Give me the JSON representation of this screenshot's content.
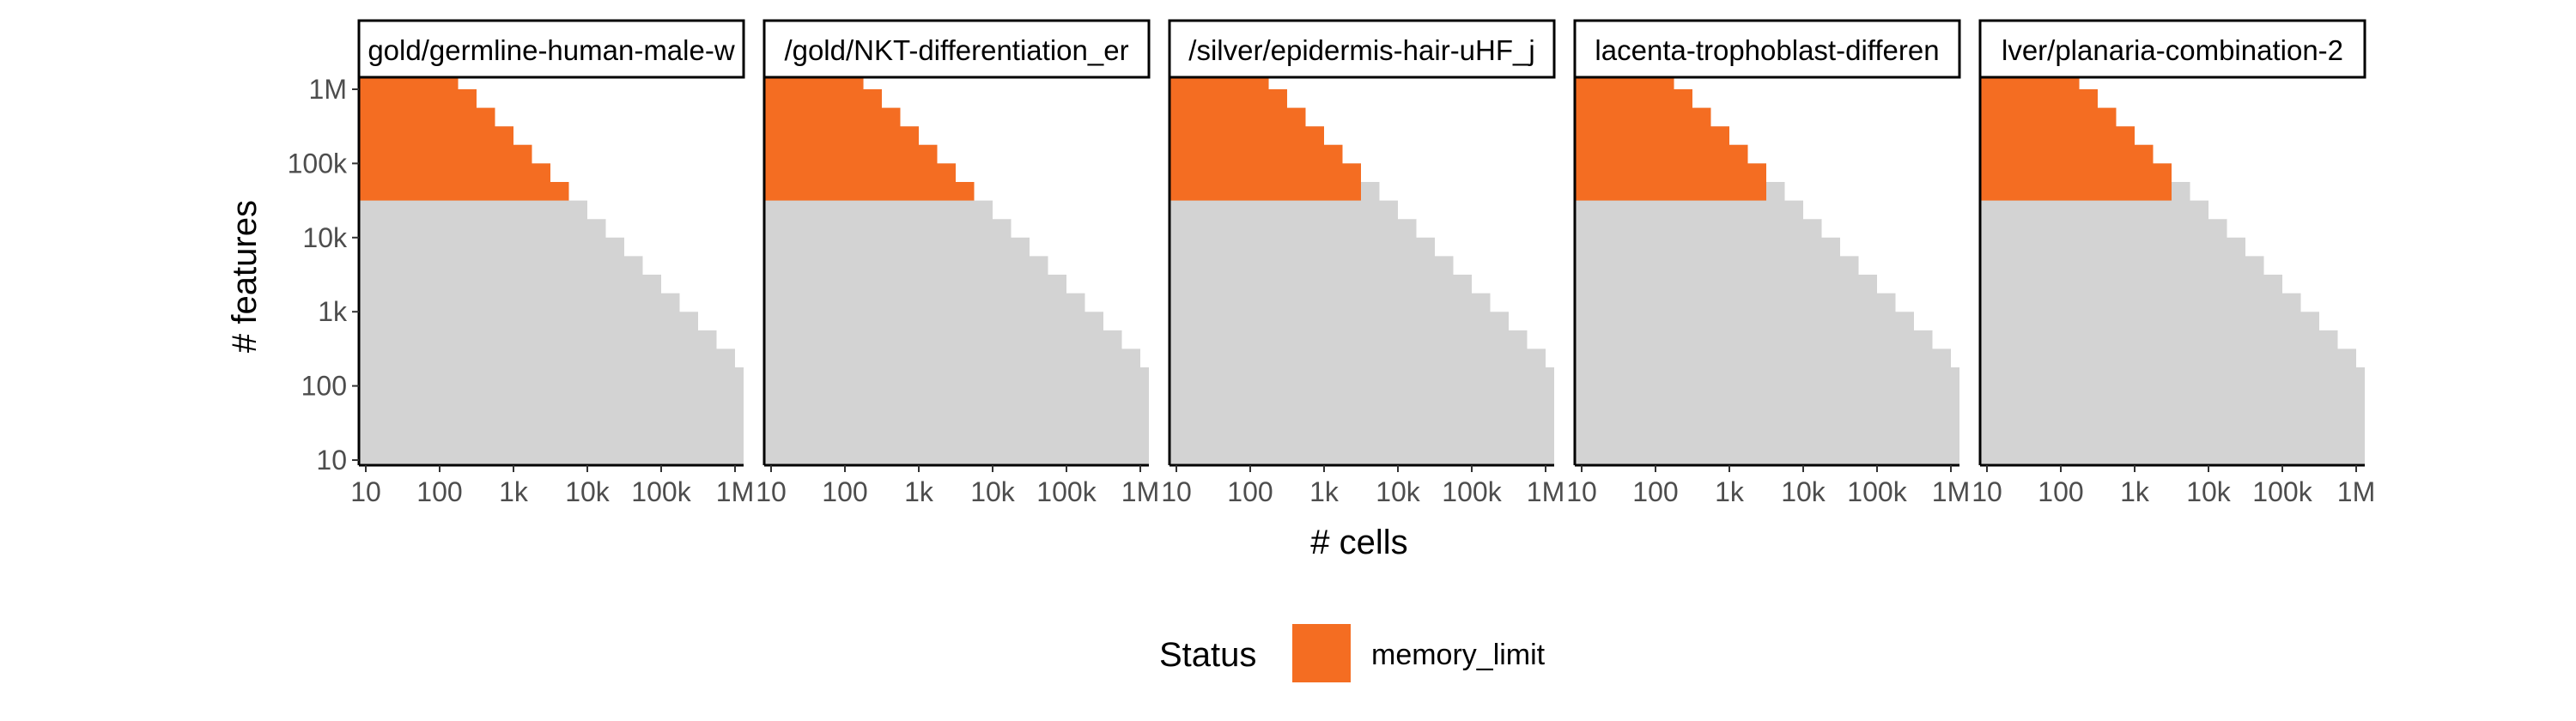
{
  "chart_data": {
    "type": "heatmap",
    "xlabel": "# cells",
    "ylabel": "# features",
    "x_scale": "log10",
    "y_scale": "log10",
    "xlim": [
      10,
      1000000
    ],
    "ylim": [
      10,
      1000000
    ],
    "x_ticks": [
      {
        "value": 10,
        "label": "10"
      },
      {
        "value": 100,
        "label": "100"
      },
      {
        "value": 1000,
        "label": "1k"
      },
      {
        "value": 10000,
        "label": "10k"
      },
      {
        "value": 100000,
        "label": "100k"
      },
      {
        "value": 1000000,
        "label": "1M"
      }
    ],
    "y_ticks": [
      {
        "value": 10,
        "label": "10"
      },
      {
        "value": 100,
        "label": "100"
      },
      {
        "value": 1000,
        "label": "1k"
      },
      {
        "value": 10000,
        "label": "10k"
      },
      {
        "value": 100000,
        "label": "100k"
      },
      {
        "value": 1000000,
        "label": "1M"
      }
    ],
    "fill_colors": {
      "memory_limit": "#f46d22",
      "other": "#d3d3d3"
    },
    "grid": false,
    "legend": {
      "title": "Status",
      "position": "bottom",
      "entries": [
        {
          "label": "memory_limit",
          "color": "#f46d22"
        }
      ]
    },
    "facets": [
      {
        "label": "gold/germline-human-male-w",
        "coverage_upper_edge": [
          [
            10,
            1778279
          ],
          [
            100,
            1778279
          ],
          [
            178,
            1000000
          ],
          [
            316,
            562341
          ],
          [
            562,
            316228
          ],
          [
            1000,
            177828
          ],
          [
            1778,
            100000
          ],
          [
            3162,
            56234
          ],
          [
            5623,
            31623
          ],
          [
            10000,
            17783
          ],
          [
            17783,
            10000
          ],
          [
            31623,
            5623
          ],
          [
            56234,
            3162
          ],
          [
            100000,
            1778
          ],
          [
            177828,
            1000
          ],
          [
            316228,
            562
          ],
          [
            562341,
            316
          ],
          [
            1000000,
            178
          ],
          [
            1778279,
            178
          ]
        ],
        "memory_limit_upper_edge": [
          [
            10,
            1778279
          ],
          [
            100,
            1778279
          ],
          [
            178,
            1000000
          ],
          [
            316,
            562341
          ],
          [
            562,
            316228
          ],
          [
            1000,
            177828
          ],
          [
            1778,
            100000
          ],
          [
            3162,
            56234
          ],
          [
            5623,
            31623
          ]
        ],
        "memory_limit_feature_min": 31623
      },
      {
        "label": "/gold/NKT-differentiation_er",
        "coverage_upper_edge": [
          [
            10,
            1778279
          ],
          [
            100,
            1778279
          ],
          [
            178,
            1000000
          ],
          [
            316,
            562341
          ],
          [
            562,
            316228
          ],
          [
            1000,
            177828
          ],
          [
            1778,
            100000
          ],
          [
            3162,
            56234
          ],
          [
            5623,
            31623
          ],
          [
            10000,
            17783
          ],
          [
            17783,
            10000
          ],
          [
            31623,
            5623
          ],
          [
            56234,
            3162
          ],
          [
            100000,
            1778
          ],
          [
            177828,
            1000
          ],
          [
            316228,
            562
          ],
          [
            562341,
            316
          ],
          [
            1000000,
            178
          ],
          [
            1778279,
            178
          ]
        ],
        "memory_limit_upper_edge": [
          [
            10,
            1778279
          ],
          [
            100,
            1778279
          ],
          [
            178,
            1000000
          ],
          [
            316,
            562341
          ],
          [
            562,
            316228
          ],
          [
            1000,
            177828
          ],
          [
            1778,
            100000
          ],
          [
            3162,
            56234
          ],
          [
            5623,
            31623
          ]
        ],
        "memory_limit_feature_min": 31623
      },
      {
        "label": "/silver/epidermis-hair-uHF_j",
        "coverage_upper_edge": [
          [
            10,
            1778279
          ],
          [
            100,
            1778279
          ],
          [
            178,
            1000000
          ],
          [
            316,
            562341
          ],
          [
            562,
            316228
          ],
          [
            1000,
            177828
          ],
          [
            1778,
            100000
          ],
          [
            3162,
            56234
          ],
          [
            5623,
            31623
          ],
          [
            10000,
            17783
          ],
          [
            17783,
            10000
          ],
          [
            31623,
            5623
          ],
          [
            56234,
            3162
          ],
          [
            100000,
            1778
          ],
          [
            177828,
            1000
          ],
          [
            316228,
            562
          ],
          [
            562341,
            316
          ],
          [
            1000000,
            178
          ],
          [
            1778279,
            178
          ]
        ],
        "memory_limit_upper_edge": [
          [
            10,
            1778279
          ],
          [
            100,
            1778279
          ],
          [
            178,
            1000000
          ],
          [
            316,
            562341
          ],
          [
            562,
            316228
          ],
          [
            1000,
            177828
          ],
          [
            1778,
            100000
          ],
          [
            3162,
            31623
          ]
        ],
        "memory_limit_feature_min": 31623
      },
      {
        "label": "lacenta-trophoblast-differen",
        "coverage_upper_edge": [
          [
            10,
            1778279
          ],
          [
            100,
            1778279
          ],
          [
            178,
            1000000
          ],
          [
            316,
            562341
          ],
          [
            562,
            316228
          ],
          [
            1000,
            177828
          ],
          [
            1778,
            100000
          ],
          [
            3162,
            56234
          ],
          [
            5623,
            31623
          ],
          [
            10000,
            17783
          ],
          [
            17783,
            10000
          ],
          [
            31623,
            5623
          ],
          [
            56234,
            3162
          ],
          [
            100000,
            1778
          ],
          [
            177828,
            1000
          ],
          [
            316228,
            562
          ],
          [
            562341,
            316
          ],
          [
            1000000,
            178
          ],
          [
            1778279,
            178
          ]
        ],
        "memory_limit_upper_edge": [
          [
            10,
            1778279
          ],
          [
            100,
            1778279
          ],
          [
            178,
            1000000
          ],
          [
            316,
            562341
          ],
          [
            562,
            316228
          ],
          [
            1000,
            177828
          ],
          [
            1778,
            100000
          ],
          [
            3162,
            31623
          ]
        ],
        "memory_limit_feature_min": 31623
      },
      {
        "label": "lver/planaria-combination-2",
        "coverage_upper_edge": [
          [
            10,
            1778279
          ],
          [
            100,
            1778279
          ],
          [
            178,
            1000000
          ],
          [
            316,
            562341
          ],
          [
            562,
            316228
          ],
          [
            1000,
            177828
          ],
          [
            1778,
            100000
          ],
          [
            3162,
            56234
          ],
          [
            5623,
            31623
          ],
          [
            10000,
            17783
          ],
          [
            17783,
            10000
          ],
          [
            31623,
            5623
          ],
          [
            56234,
            3162
          ],
          [
            100000,
            1778
          ],
          [
            177828,
            1000
          ],
          [
            316228,
            562
          ],
          [
            562341,
            316
          ],
          [
            1000000,
            178
          ],
          [
            1778279,
            178
          ]
        ],
        "memory_limit_upper_edge": [
          [
            10,
            1778279
          ],
          [
            100,
            1778279
          ],
          [
            178,
            1000000
          ],
          [
            316,
            562341
          ],
          [
            562,
            316228
          ],
          [
            1000,
            177828
          ],
          [
            1778,
            100000
          ],
          [
            3162,
            31623
          ]
        ],
        "memory_limit_feature_min": 31623
      }
    ]
  }
}
